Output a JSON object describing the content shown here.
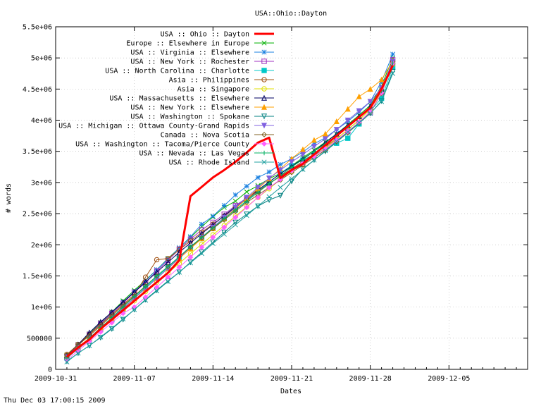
{
  "chart_data": {
    "type": "line",
    "title": "USA::Ohio::Dayton",
    "xlabel": "Dates",
    "ylabel": "# words",
    "footer": "Thu Dec 03 17:00:15 2009",
    "xlim": [
      0,
      42
    ],
    "ylim": [
      0,
      5500000
    ],
    "x_ticks": [
      {
        "x": 0,
        "label": "2009-10-31"
      },
      {
        "x": 7,
        "label": "2009-11-07"
      },
      {
        "x": 14,
        "label": "2009-11-14"
      },
      {
        "x": 21,
        "label": "2009-11-21"
      },
      {
        "x": 28,
        "label": "2009-11-28"
      },
      {
        "x": 35,
        "label": "2009-12-05"
      }
    ],
    "y_ticks": [
      {
        "y": 0,
        "label": "0"
      },
      {
        "y": 500000,
        "label": "500000"
      },
      {
        "y": 1000000,
        "label": "1e+06"
      },
      {
        "y": 1500000,
        "label": "1.5e+06"
      },
      {
        "y": 2000000,
        "label": "2e+06"
      },
      {
        "y": 2500000,
        "label": "2.5e+06"
      },
      {
        "y": 3000000,
        "label": "3e+06"
      },
      {
        "y": 3500000,
        "label": "3.5e+06"
      },
      {
        "y": 4000000,
        "label": "4e+06"
      },
      {
        "y": 4500000,
        "label": "4.5e+06"
      },
      {
        "y": 5000000,
        "label": "5e+06"
      },
      {
        "y": 5500000,
        "label": "5.5e+06"
      }
    ],
    "grid": true,
    "legend_position": "top-left",
    "x": [
      1,
      2,
      3,
      4,
      5,
      6,
      7,
      8,
      9,
      10,
      11,
      12,
      13,
      14,
      15,
      16,
      17,
      18,
      19,
      20,
      21,
      22,
      23,
      24,
      25,
      26,
      27,
      28,
      29,
      30
    ],
    "series": [
      {
        "name": "USA :: Ohio :: Dayton",
        "color": "#ff0000",
        "marker": "none",
        "width": 3,
        "x": [
          1,
          2,
          3,
          4,
          5,
          6,
          7,
          8,
          9,
          10,
          11,
          12,
          13,
          14,
          15,
          16,
          17,
          18,
          19,
          20,
          21,
          22,
          23,
          24,
          25,
          26,
          27,
          28,
          29,
          30
        ],
        "values": [
          200000,
          350000,
          480000,
          650000,
          800000,
          950000,
          1100000,
          1250000,
          1400000,
          1550000,
          1750000,
          2780000,
          2930000,
          3080000,
          3200000,
          3330000,
          3480000,
          3640000,
          3720000,
          3070000,
          3200000,
          3300000,
          3450000,
          3600000,
          3750000,
          3900000,
          4050000,
          4200000,
          4500000,
          4880000
        ]
      },
      {
        "name": "Europe :: Elsewhere in Europe",
        "color": "#00b000",
        "marker": "x",
        "values": [
          230000,
          400000,
          570000,
          750000,
          920000,
          1100000,
          1270000,
          1430000,
          1600000,
          1780000,
          1950000,
          2120000,
          2290000,
          2450000,
          2600000,
          2700000,
          2850000,
          2950000,
          3060000,
          3150000,
          3270000,
          3400000,
          3520000,
          3650000,
          3780000,
          3930000,
          4080000,
          4240000,
          4550000,
          5000000
        ]
      },
      {
        "name": "USA :: Virginia :: Elsewhere",
        "color": "#1a80e0",
        "marker": "star",
        "values": [
          200000,
          380000,
          560000,
          730000,
          900000,
          1080000,
          1250000,
          1420000,
          1600000,
          1770000,
          1950000,
          2130000,
          2330000,
          2460000,
          2630000,
          2800000,
          2940000,
          3080000,
          3170000,
          3290000,
          3380000,
          3490000,
          3620000,
          3720000,
          3850000,
          3980000,
          4130000,
          4300000,
          4620000,
          5060000
        ]
      },
      {
        "name": "USA :: New York :: Rochester",
        "color": "#a030c0",
        "marker": "square",
        "values": [
          210000,
          390000,
          560000,
          740000,
          900000,
          1060000,
          1240000,
          1390000,
          1580000,
          1750000,
          1930000,
          2090000,
          2240000,
          2360000,
          2490000,
          2630000,
          2750000,
          2870000,
          2980000,
          3110000,
          3210000,
          3320000,
          3430000,
          3550000,
          3670000,
          3820000,
          3960000,
          4120000,
          4450000,
          4970000
        ]
      },
      {
        "name": "USA :: North Carolina :: Charlotte",
        "color": "#00c8c8",
        "marker": "filled-square",
        "values": [
          180000,
          330000,
          470000,
          640000,
          800000,
          970000,
          1150000,
          1310000,
          1480000,
          1640000,
          1800000,
          1960000,
          2100000,
          2260000,
          2420000,
          2560000,
          2710000,
          2860000,
          3000000,
          3150000,
          3270000,
          3360000,
          3450000,
          3530000,
          3630000,
          3710000,
          3940000,
          4150000,
          4350000,
          4850000
        ]
      },
      {
        "name": "Asia :: Philippines",
        "color": "#a05010",
        "marker": "circle",
        "values": [
          240000,
          400000,
          560000,
          720000,
          880000,
          1040000,
          1200000,
          1480000,
          1760000,
          1780000,
          1920000,
          2060000,
          2200000,
          2330000,
          2460000,
          2600000,
          2730000,
          2860000,
          2980000,
          3100000,
          3220000,
          3340000,
          3460000,
          3580000,
          3700000,
          3850000,
          4000000,
          4180000,
          4480000,
          4950000
        ]
      },
      {
        "name": "Asia :: Singapore",
        "color": "#e0e000",
        "marker": "circle",
        "values": [
          200000,
          350000,
          500000,
          650000,
          800000,
          950000,
          1100000,
          1250000,
          1400000,
          1550000,
          1700000,
          1860000,
          2010000,
          2160000,
          2310000,
          2460000,
          2610000,
          2760000,
          2900000,
          3050000,
          3180000,
          3300000,
          3420000,
          3550000,
          3700000,
          3850000,
          4000000,
          4180000,
          4450000,
          4900000
        ]
      },
      {
        "name": "USA :: Massachusetts :: Elsewhere",
        "color": "#000060",
        "marker": "triangle",
        "values": [
          220000,
          400000,
          590000,
          760000,
          920000,
          1080000,
          1240000,
          1400000,
          1560000,
          1720000,
          1880000,
          2030000,
          2180000,
          2320000,
          2470000,
          2610000,
          2750000,
          2880000,
          3010000,
          3140000,
          3260000,
          3380000,
          3500000,
          3640000,
          3780000,
          3920000,
          4060000,
          4220000,
          4500000,
          4950000
        ]
      },
      {
        "name": "USA :: New York :: Elsewhere",
        "color": "#ffa000",
        "marker": "filled-triangle",
        "values": [
          200000,
          360000,
          500000,
          660000,
          820000,
          980000,
          1140000,
          1300000,
          1460000,
          1620000,
          1780000,
          1940000,
          2100000,
          2260000,
          2420000,
          2580000,
          2740000,
          2900000,
          3060000,
          3220000,
          3380000,
          3530000,
          3680000,
          3780000,
          3980000,
          4180000,
          4380000,
          4500000,
          4650000,
          4950000
        ]
      },
      {
        "name": "USA :: Washington :: Spokane",
        "color": "#008080",
        "marker": "down-triangle",
        "values": [
          130000,
          260000,
          380000,
          510000,
          650000,
          800000,
          960000,
          1120000,
          1270000,
          1420000,
          1560000,
          1720000,
          1880000,
          2040000,
          2200000,
          2360000,
          2490000,
          2620000,
          2720000,
          2790000,
          3020000,
          3220000,
          3360000,
          3500000,
          3650000,
          3800000,
          3950000,
          4110000,
          4310000,
          4780000
        ]
      },
      {
        "name": "USA :: Michigan :: Ottawa County-Grand Rapids",
        "color": "#8060e0",
        "marker": "filled-down-triangle",
        "values": [
          200000,
          350000,
          500000,
          660000,
          820000,
          980000,
          1140000,
          1300000,
          1460000,
          1620000,
          1790000,
          1960000,
          2120000,
          2280000,
          2440000,
          2600000,
          2760000,
          2920000,
          3070000,
          3200000,
          3330000,
          3450000,
          3580000,
          3700000,
          3850000,
          4000000,
          4150000,
          4300000,
          4520000,
          4940000
        ]
      },
      {
        "name": "Canada :: Nova Scotia",
        "color": "#806020",
        "marker": "diamond",
        "values": [
          230000,
          390000,
          540000,
          700000,
          860000,
          1020000,
          1180000,
          1340000,
          1500000,
          1650000,
          1810000,
          1960000,
          2110000,
          2260000,
          2400000,
          2540000,
          2680000,
          2800000,
          2920000,
          3040000,
          3160000,
          3280000,
          3400000,
          3520000,
          3660000,
          3800000,
          3960000,
          4130000,
          4430000,
          4900000
        ]
      },
      {
        "name": "USA :: Washington :: Tacoma/Pierce County",
        "color": "#ff60ff",
        "marker": "filled-diamond",
        "values": [
          150000,
          300000,
          450000,
          600000,
          750000,
          900000,
          1000000,
          1160000,
          1320000,
          1480000,
          1640000,
          1800000,
          1960000,
          2120000,
          2280000,
          2440000,
          2600000,
          2760000,
          2920000,
          3050000,
          3190000,
          3310000,
          3420000,
          3540000,
          3680000,
          3820000,
          3970000,
          4140000,
          4440000,
          4910000
        ]
      },
      {
        "name": "USA :: Nevada :: Las Vegas",
        "color": "#00b060",
        "marker": "plus",
        "values": [
          180000,
          340000,
          500000,
          670000,
          830000,
          1000000,
          1170000,
          1330000,
          1500000,
          1650000,
          1810000,
          1970000,
          2120000,
          2270000,
          2420000,
          2560000,
          2700000,
          2840000,
          2980000,
          3110000,
          3250000,
          3370000,
          3500000,
          3620000,
          3760000,
          3900000,
          4050000,
          4200000,
          4470000,
          4920000
        ]
      },
      {
        "name": "USA :: Rhode Island",
        "color": "#20a0a0",
        "marker": "x",
        "values": [
          120000,
          260000,
          380000,
          520000,
          660000,
          810000,
          960000,
          1110000,
          1260000,
          1410000,
          1560000,
          1710000,
          1860000,
          2020000,
          2170000,
          2320000,
          2470000,
          2620000,
          2770000,
          2920000,
          3060000,
          3210000,
          3360000,
          3510000,
          3660000,
          3810000,
          3960000,
          4110000,
          4300000,
          4750000
        ]
      }
    ]
  }
}
